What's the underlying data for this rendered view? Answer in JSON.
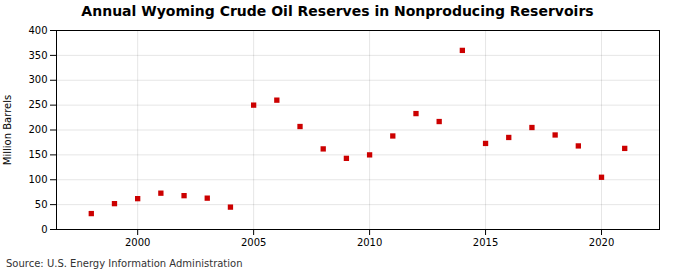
{
  "chart_data": {
    "type": "scatter",
    "title": "Annual Wyoming Crude Oil Reserves in Nonproducing Reservoirs",
    "ylabel": "Million Barrels",
    "source": "Source: U.S. Energy Information Administration",
    "x": [
      1998,
      1999,
      2000,
      2001,
      2002,
      2003,
      2004,
      2005,
      2006,
      2007,
      2008,
      2009,
      2010,
      2011,
      2012,
      2013,
      2014,
      2015,
      2016,
      2017,
      2018,
      2019,
      2020,
      2021
    ],
    "values": [
      32,
      52,
      62,
      73,
      68,
      63,
      45,
      250,
      260,
      207,
      162,
      143,
      150,
      188,
      233,
      217,
      360,
      173,
      185,
      205,
      190,
      168,
      105,
      163
    ],
    "color": "#cc0000",
    "marker": "square",
    "xlim": [
      1996.5,
      2022.5
    ],
    "xticks": [
      2000,
      2005,
      2010,
      2015,
      2020
    ],
    "ylim": [
      0,
      400
    ],
    "yticks": [
      0,
      50,
      100,
      150,
      200,
      250,
      300,
      350,
      400
    ],
    "grid": true
  }
}
